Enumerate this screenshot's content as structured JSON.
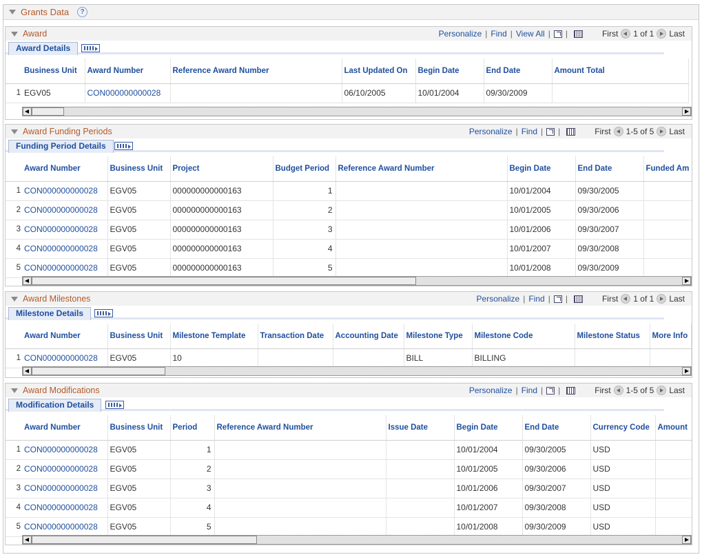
{
  "page_title": "Grants Data",
  "nav_labels": {
    "personalize": "Personalize",
    "find": "Find",
    "view_all": "View All",
    "first": "First",
    "last": "Last"
  },
  "award": {
    "title": "Award",
    "tab": "Award Details",
    "count": "1 of 1",
    "columns": [
      "Business Unit",
      "Award Number",
      "Reference Award Number",
      "Last Updated On",
      "Begin Date",
      "End Date",
      "Amount Total"
    ],
    "rows": [
      {
        "n": "1",
        "cells": [
          "EGV05",
          "CON000000000028",
          "",
          "06/10/2005",
          "10/01/2004",
          "09/30/2009",
          ""
        ]
      }
    ]
  },
  "funding": {
    "title": "Award Funding Periods",
    "tab": "Funding Period Details",
    "count": "1-5 of 5",
    "columns": [
      "Award Number",
      "Business Unit",
      "Project",
      "Budget Period",
      "Reference Award Number",
      "Begin Date",
      "End Date",
      "Funded Am"
    ],
    "rows": [
      {
        "n": "1",
        "cells": [
          "CON000000000028",
          "EGV05",
          "000000000000163",
          "1",
          "",
          "10/01/2004",
          "09/30/2005",
          ""
        ]
      },
      {
        "n": "2",
        "cells": [
          "CON000000000028",
          "EGV05",
          "000000000000163",
          "2",
          "",
          "10/01/2005",
          "09/30/2006",
          ""
        ]
      },
      {
        "n": "3",
        "cells": [
          "CON000000000028",
          "EGV05",
          "000000000000163",
          "3",
          "",
          "10/01/2006",
          "09/30/2007",
          ""
        ]
      },
      {
        "n": "4",
        "cells": [
          "CON000000000028",
          "EGV05",
          "000000000000163",
          "4",
          "",
          "10/01/2007",
          "09/30/2008",
          ""
        ]
      },
      {
        "n": "5",
        "cells": [
          "CON000000000028",
          "EGV05",
          "000000000000163",
          "5",
          "",
          "10/01/2008",
          "09/30/2009",
          ""
        ]
      }
    ]
  },
  "milestones": {
    "title": "Award Milestones",
    "tab": "Milestone Details",
    "count": "1 of 1",
    "columns": [
      "Award Number",
      "Business Unit",
      "Milestone Template",
      "Transaction Date",
      "Accounting Date",
      "Milestone Type",
      "Milestone Code",
      "Milestone Status",
      "More Info"
    ],
    "rows": [
      {
        "n": "1",
        "cells": [
          "CON000000000028",
          "EGV05",
          "10",
          "",
          "",
          "BILL",
          "BILLING",
          "",
          ""
        ]
      }
    ]
  },
  "modifications": {
    "title": "Award Modifications",
    "tab": "Modification Details",
    "count": "1-5 of 5",
    "columns": [
      "Award Number",
      "Business Unit",
      "Period",
      "Reference Award Number",
      "Issue Date",
      "Begin Date",
      "End Date",
      "Currency Code",
      "Amount"
    ],
    "rows": [
      {
        "n": "1",
        "cells": [
          "CON000000000028",
          "EGV05",
          "1",
          "",
          "",
          "10/01/2004",
          "09/30/2005",
          "USD",
          ""
        ]
      },
      {
        "n": "2",
        "cells": [
          "CON000000000028",
          "EGV05",
          "2",
          "",
          "",
          "10/01/2005",
          "09/30/2006",
          "USD",
          ""
        ]
      },
      {
        "n": "3",
        "cells": [
          "CON000000000028",
          "EGV05",
          "3",
          "",
          "",
          "10/01/2006",
          "09/30/2007",
          "USD",
          ""
        ]
      },
      {
        "n": "4",
        "cells": [
          "CON000000000028",
          "EGV05",
          "4",
          "",
          "",
          "10/01/2007",
          "09/30/2008",
          "USD",
          ""
        ]
      },
      {
        "n": "5",
        "cells": [
          "CON000000000028",
          "EGV05",
          "5",
          "",
          "",
          "10/01/2008",
          "09/30/2009",
          "USD",
          ""
        ]
      }
    ]
  }
}
